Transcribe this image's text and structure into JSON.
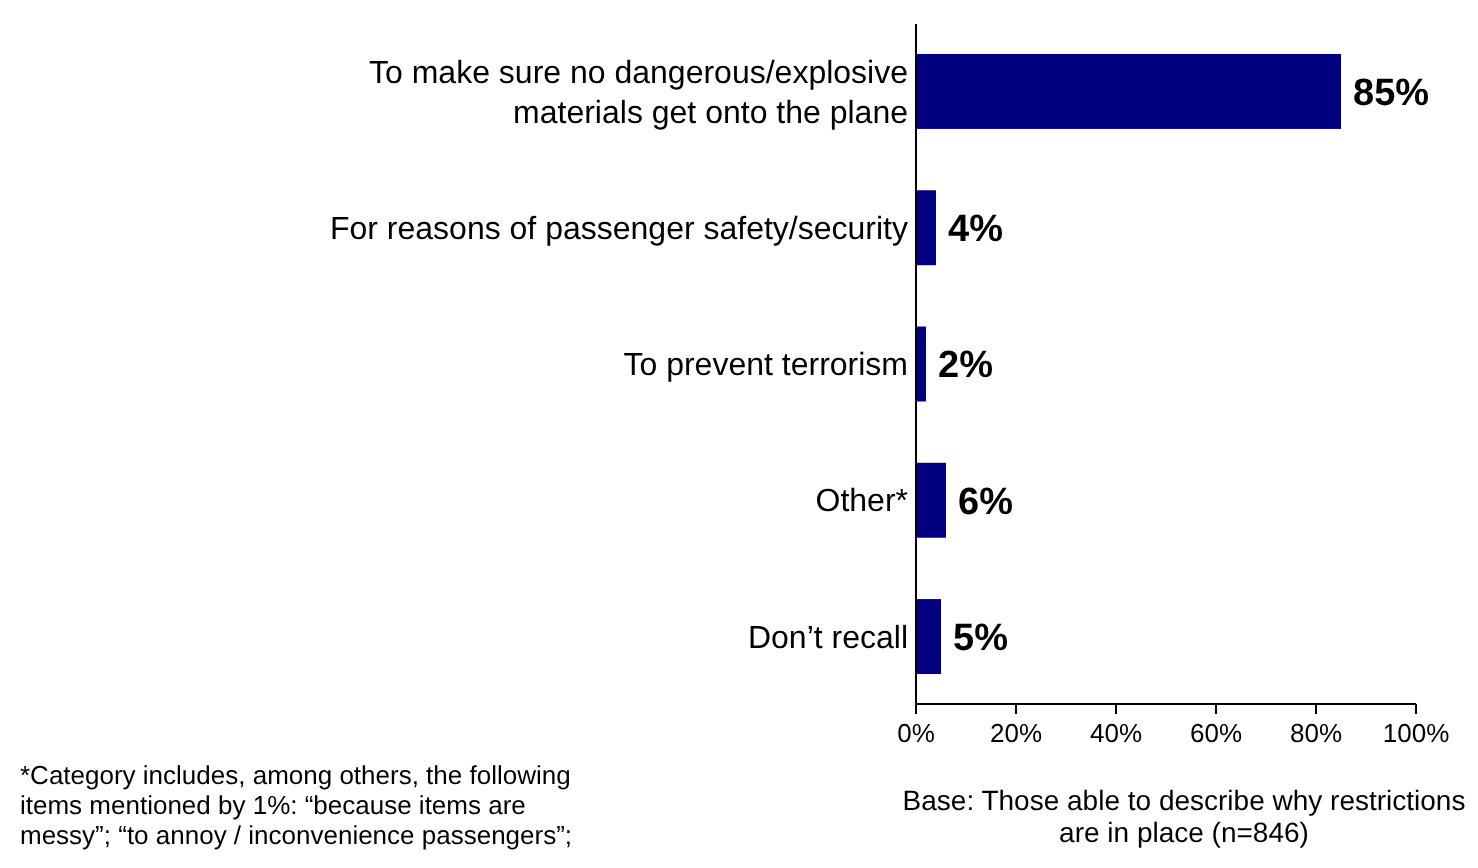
{
  "chart_data": {
    "type": "bar",
    "orientation": "horizontal",
    "categories": [
      "To make sure no dangerous/explosive materials get onto the plane",
      "For reasons of passenger safety/security",
      "To prevent terrorism",
      "Other*",
      "Don’t recall"
    ],
    "values": [
      85,
      4,
      2,
      6,
      5
    ],
    "value_labels": [
      "85%",
      "4%",
      "2%",
      "6%",
      "5%"
    ],
    "color": "#000080",
    "xlim": [
      0,
      100
    ],
    "xticks": [
      {
        "value": 0,
        "label": "0%"
      },
      {
        "value": 20,
        "label": "20%"
      },
      {
        "value": 40,
        "label": "40%"
      },
      {
        "value": 60,
        "label": "60%"
      },
      {
        "value": 80,
        "label": "80%"
      },
      {
        "value": 100,
        "label": "100%"
      }
    ],
    "grid": false,
    "annotations": [
      "*Category includes, among others, the following items mentioned by 1%: “because items are messy”; “to annoy / inconvenience passengers”;",
      "Base: Those able to describe why restrictions are in place (n=846)"
    ]
  }
}
